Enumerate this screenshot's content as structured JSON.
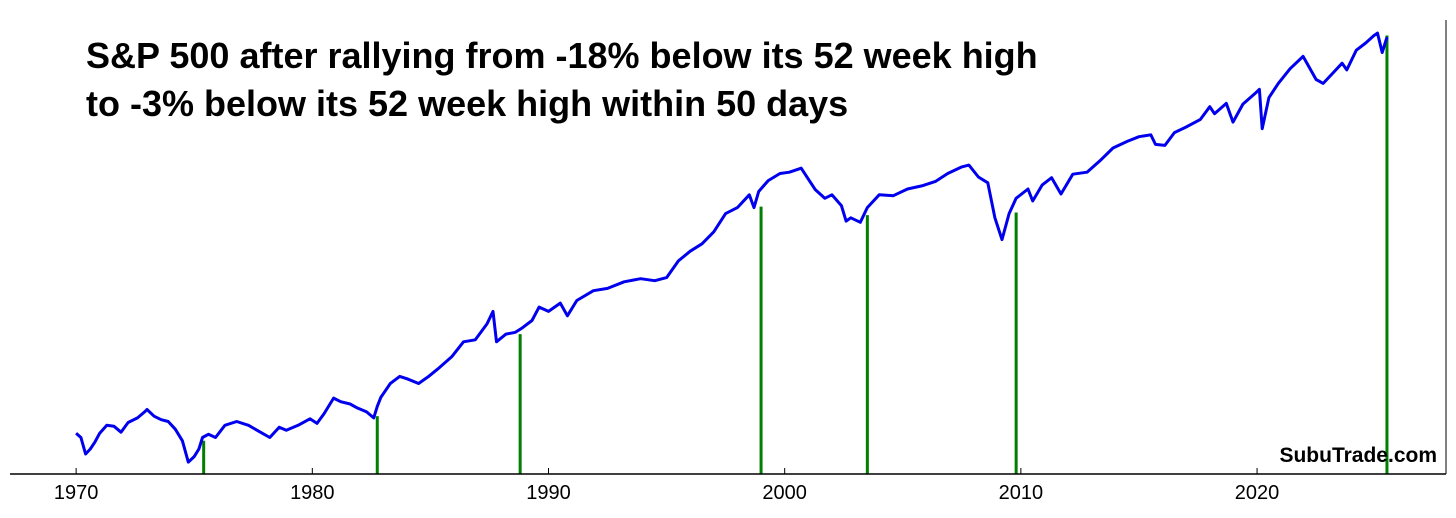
{
  "chart_data": {
    "type": "line",
    "title_lines": [
      "S&P 500 after rallying from -18% below its 52 week high",
      "to -3% below its 52 week high within 50 days"
    ],
    "xlabel": "",
    "ylabel": "",
    "y_scale": "log",
    "y_axis_visible": false,
    "xlim": [
      1967.2,
      2028.0
    ],
    "ylim": [
      60,
      7000
    ],
    "x_ticks": [
      1970,
      1980,
      1990,
      2000,
      2010,
      2020
    ],
    "x_tick_labels": [
      "1970",
      "1980",
      "1990",
      "2000",
      "2010",
      "2020"
    ],
    "grid": false,
    "legend": "none",
    "series": [
      {
        "color": "#0000ee",
        "points": [
          [
            1970.0,
            92
          ],
          [
            1970.2,
            88
          ],
          [
            1970.4,
            74
          ],
          [
            1970.6,
            78
          ],
          [
            1970.8,
            84
          ],
          [
            1971.0,
            92
          ],
          [
            1971.3,
            100
          ],
          [
            1971.6,
            99
          ],
          [
            1971.9,
            93
          ],
          [
            1972.2,
            103
          ],
          [
            1972.6,
            108
          ],
          [
            1972.9,
            115
          ],
          [
            1973.0,
            118
          ],
          [
            1973.3,
            110
          ],
          [
            1973.6,
            106
          ],
          [
            1973.9,
            104
          ],
          [
            1974.2,
            96
          ],
          [
            1974.5,
            85
          ],
          [
            1974.75,
            68
          ],
          [
            1975.0,
            72
          ],
          [
            1975.2,
            78
          ],
          [
            1975.35,
            88
          ],
          [
            1975.6,
            91
          ],
          [
            1975.9,
            88
          ],
          [
            1976.3,
            100
          ],
          [
            1976.8,
            104
          ],
          [
            1977.3,
            100
          ],
          [
            1977.8,
            93
          ],
          [
            1978.2,
            88
          ],
          [
            1978.6,
            98
          ],
          [
            1978.9,
            95
          ],
          [
            1979.4,
            100
          ],
          [
            1979.9,
            107
          ],
          [
            1980.2,
            102
          ],
          [
            1980.5,
            113
          ],
          [
            1980.9,
            133
          ],
          [
            1981.2,
            128
          ],
          [
            1981.6,
            125
          ],
          [
            1981.9,
            120
          ],
          [
            1982.3,
            115
          ],
          [
            1982.6,
            108
          ],
          [
            1982.75,
            122
          ],
          [
            1982.9,
            134
          ],
          [
            1983.3,
            155
          ],
          [
            1983.7,
            167
          ],
          [
            1984.0,
            163
          ],
          [
            1984.5,
            155
          ],
          [
            1984.9,
            166
          ],
          [
            1985.3,
            180
          ],
          [
            1985.9,
            205
          ],
          [
            1986.4,
            240
          ],
          [
            1986.9,
            245
          ],
          [
            1987.4,
            290
          ],
          [
            1987.65,
            330
          ],
          [
            1987.8,
            240
          ],
          [
            1988.2,
            260
          ],
          [
            1988.6,
            265
          ],
          [
            1988.9,
            278
          ],
          [
            1989.3,
            300
          ],
          [
            1989.6,
            345
          ],
          [
            1990.0,
            330
          ],
          [
            1990.5,
            360
          ],
          [
            1990.8,
            315
          ],
          [
            1991.2,
            370
          ],
          [
            1991.9,
            410
          ],
          [
            1992.5,
            420
          ],
          [
            1993.2,
            450
          ],
          [
            1993.9,
            465
          ],
          [
            1994.5,
            455
          ],
          [
            1995.0,
            470
          ],
          [
            1995.5,
            560
          ],
          [
            1996.0,
            620
          ],
          [
            1996.5,
            670
          ],
          [
            1997.0,
            760
          ],
          [
            1997.5,
            920
          ],
          [
            1998.0,
            980
          ],
          [
            1998.5,
            1120
          ],
          [
            1998.7,
            980
          ],
          [
            1998.9,
            1160
          ],
          [
            1999.3,
            1300
          ],
          [
            1999.8,
            1400
          ],
          [
            2000.2,
            1420
          ],
          [
            2000.7,
            1480
          ],
          [
            2001.0,
            1320
          ],
          [
            2001.3,
            1180
          ],
          [
            2001.7,
            1080
          ],
          [
            2002.0,
            1120
          ],
          [
            2002.4,
            1000
          ],
          [
            2002.6,
            850
          ],
          [
            2002.8,
            880
          ],
          [
            2003.2,
            840
          ],
          [
            2003.5,
            980
          ],
          [
            2004.0,
            1120
          ],
          [
            2004.6,
            1110
          ],
          [
            2005.2,
            1190
          ],
          [
            2005.8,
            1230
          ],
          [
            2006.4,
            1290
          ],
          [
            2006.9,
            1400
          ],
          [
            2007.5,
            1500
          ],
          [
            2007.8,
            1530
          ],
          [
            2008.2,
            1350
          ],
          [
            2008.6,
            1270
          ],
          [
            2008.9,
            880
          ],
          [
            2009.2,
            700
          ],
          [
            2009.5,
            920
          ],
          [
            2009.8,
            1080
          ],
          [
            2010.3,
            1190
          ],
          [
            2010.5,
            1050
          ],
          [
            2010.9,
            1240
          ],
          [
            2011.3,
            1340
          ],
          [
            2011.7,
            1130
          ],
          [
            2012.2,
            1390
          ],
          [
            2012.8,
            1420
          ],
          [
            2013.4,
            1620
          ],
          [
            2013.9,
            1830
          ],
          [
            2014.5,
            1960
          ],
          [
            2015.0,
            2060
          ],
          [
            2015.5,
            2100
          ],
          [
            2015.7,
            1900
          ],
          [
            2016.1,
            1880
          ],
          [
            2016.5,
            2150
          ],
          [
            2017.0,
            2280
          ],
          [
            2017.6,
            2470
          ],
          [
            2018.0,
            2820
          ],
          [
            2018.2,
            2620
          ],
          [
            2018.7,
            2920
          ],
          [
            2018.98,
            2400
          ],
          [
            2019.4,
            2900
          ],
          [
            2019.9,
            3230
          ],
          [
            2020.1,
            3380
          ],
          [
            2020.22,
            2240
          ],
          [
            2020.5,
            3100
          ],
          [
            2020.9,
            3600
          ],
          [
            2021.4,
            4200
          ],
          [
            2021.95,
            4780
          ],
          [
            2022.5,
            3750
          ],
          [
            2022.8,
            3600
          ],
          [
            2023.2,
            4000
          ],
          [
            2023.6,
            4450
          ],
          [
            2023.8,
            4150
          ],
          [
            2024.2,
            5100
          ],
          [
            2024.6,
            5500
          ],
          [
            2024.95,
            5950
          ],
          [
            2025.1,
            6100
          ],
          [
            2025.3,
            4980
          ],
          [
            2025.5,
            5850
          ]
        ]
      }
    ],
    "event_lines": {
      "color": "#007f00",
      "x": [
        1975.4,
        1982.75,
        1988.8,
        1999.0,
        2003.5,
        2009.8,
        2025.5
      ],
      "y_top": [
        85,
        110,
        260,
        990,
        905,
        930,
        5950
      ]
    },
    "watermark": "SubuTrade.com"
  }
}
